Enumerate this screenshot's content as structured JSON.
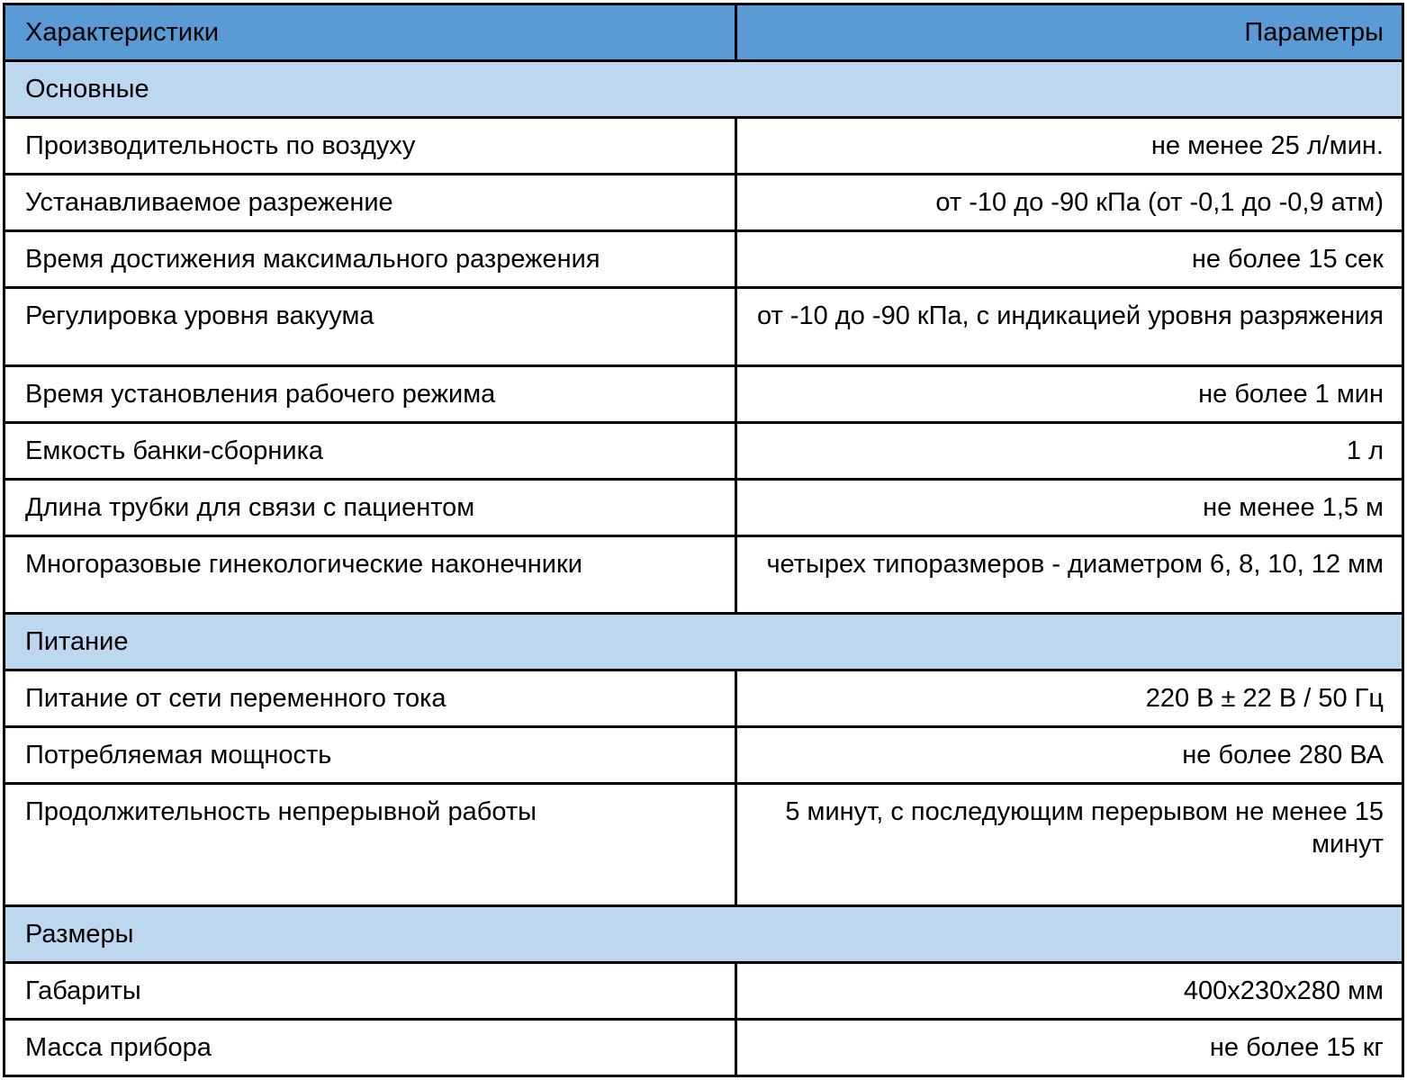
{
  "table": {
    "header": {
      "characteristics": "Характеристики",
      "parameters": "Параметры"
    },
    "colors": {
      "header_bg": "#5B9BD5",
      "section_bg": "#BDD7EE",
      "border": "#000000",
      "text": "#000000",
      "row_bg": "#FFFFFF"
    },
    "sections": [
      {
        "title": "Основные",
        "rows": [
          {
            "name": "Производительность по воздуху",
            "value": "не менее 25 л/мин."
          },
          {
            "name": "Устанавливаемое разрежение",
            "value": "от -10 до -90 кПа (от -0,1 до -0,9 атм)"
          },
          {
            "name": "Время достижения максимального разрежения",
            "value": "не более 15 сек"
          },
          {
            "name": "Регулировка уровня вакуума",
            "value": "от -10 до -90 кПа, с индикацией уровня разряжения"
          },
          {
            "name": "Время установления рабочего режима",
            "value": "не более 1 мин"
          },
          {
            "name": "Емкость банки-сборника",
            "value": "1 л"
          },
          {
            "name": "Длина трубки для связи с пациентом",
            "value": "не менее 1,5 м"
          },
          {
            "name": "Многоразовые гинекологические наконечники",
            "value": "четырех типоразмеров - диаметром 6, 8, 10, 12 мм"
          }
        ]
      },
      {
        "title": "Питание",
        "rows": [
          {
            "name": "Питание от сети переменного тока",
            "value": "220 В ± 22 В / 50 Гц"
          },
          {
            "name": "Потребляемая мощность",
            "value": "не более 280 ВА"
          },
          {
            "name": "Продолжительность непрерывной работы",
            "value": "5 минут, с последующим перерывом не менее 15 минут"
          }
        ]
      },
      {
        "title": "Размеры",
        "rows": [
          {
            "name": "Габариты",
            "value": "400х230х280 мм"
          },
          {
            "name": "Масса прибора",
            "value": "не более 15 кг"
          }
        ]
      }
    ]
  }
}
